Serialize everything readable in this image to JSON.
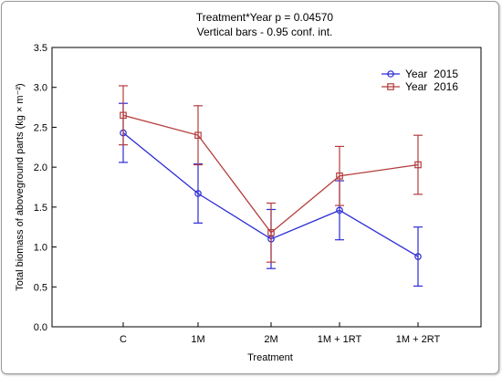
{
  "chart_data": {
    "type": "line",
    "title": "Treatment*Year p = 0.04570",
    "subtitle": "Vertical bars - 0.95 conf. int.",
    "xlabel": "Treatment",
    "ylabel": "Total biomass of aboveground parts (kg × m⁻²)",
    "categories": [
      "C",
      "1M",
      "2M",
      "1M + 1RT",
      "1M + 2RT"
    ],
    "ylim": [
      0,
      3.5
    ],
    "yticks": [
      "0.0",
      "0.5",
      "1.0",
      "1.5",
      "2.0",
      "2.5",
      "3.0",
      "3.5"
    ],
    "grid": false,
    "legend_position": "top-right",
    "series": [
      {
        "name_label": "Year",
        "name_value": "2015",
        "color": "#2b2bd6",
        "marker": "circle",
        "values": [
          2.43,
          1.67,
          1.1,
          1.46,
          0.88
        ],
        "ci_low": [
          2.06,
          1.3,
          0.73,
          1.09,
          0.51
        ],
        "ci_high": [
          2.8,
          2.04,
          1.47,
          1.83,
          1.25
        ]
      },
      {
        "name_label": "Year",
        "name_value": "2016",
        "color": "#b43c3c",
        "marker": "square",
        "values": [
          2.65,
          2.4,
          1.18,
          1.89,
          2.03
        ],
        "ci_low": [
          2.28,
          2.03,
          0.81,
          1.52,
          1.66
        ],
        "ci_high": [
          3.02,
          2.77,
          1.55,
          2.26,
          2.4
        ]
      }
    ]
  }
}
